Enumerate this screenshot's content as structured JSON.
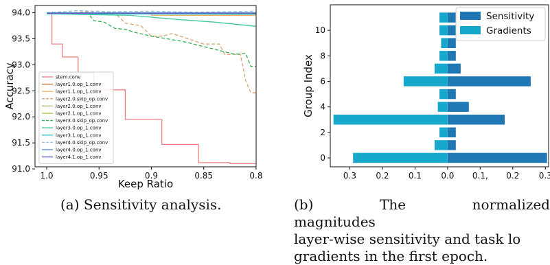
{
  "captions": {
    "a": "(a) Sensitivity analysis.",
    "b1": "(b) The normalized magnitudes",
    "b2": "layer-wise sensitivity and task lo",
    "b3": "gradients in the first epoch."
  },
  "chart_data": [
    {
      "type": "line",
      "xlabel": "Keep Ratio",
      "ylabel": "Accuracy",
      "xlim": [
        1.0,
        0.8
      ],
      "ylim": [
        91.0,
        94.1
      ],
      "x_reversed": true,
      "xticks": [
        1.0,
        0.95,
        0.9,
        0.85,
        0.8
      ],
      "xtick_labels": [
        "1.0",
        "0.95",
        "0.9",
        "0.85",
        "0.8"
      ],
      "yticks": [
        91.0,
        91.5,
        92.0,
        92.5,
        93.0,
        93.5,
        94.0
      ],
      "ytick_labels": [
        "91.0",
        "91.5",
        "92.0",
        "92.5",
        "93.0",
        "93.5",
        "94.0"
      ],
      "grid": false,
      "legend_position": "bottom-left",
      "series": [
        {
          "name": "stem.conv",
          "color": "#f08080",
          "dash": false,
          "points": [
            [
              1.0,
              93.98
            ],
            [
              0.995,
              93.98
            ],
            [
              0.995,
              93.4
            ],
            [
              0.985,
              93.4
            ],
            [
              0.985,
              93.15
            ],
            [
              0.97,
              93.15
            ],
            [
              0.97,
              92.85
            ],
            [
              0.955,
              92.85
            ],
            [
              0.955,
              92.52
            ],
            [
              0.925,
              92.52
            ],
            [
              0.925,
              91.95
            ],
            [
              0.89,
              91.95
            ],
            [
              0.89,
              91.47
            ],
            [
              0.855,
              91.47
            ],
            [
              0.855,
              91.12
            ],
            [
              0.825,
              91.12
            ],
            [
              0.825,
              91.1
            ],
            [
              0.8,
              91.1
            ]
          ]
        },
        {
          "name": "layer1.0.op_1.conv",
          "color": "#c8743c",
          "dash": false,
          "points": [
            [
              1.0,
              93.98
            ],
            [
              0.8,
              93.98
            ]
          ]
        },
        {
          "name": "layer1.1.op_1.conv",
          "color": "#f0b070",
          "dash": false,
          "points": [
            [
              1.0,
              93.99
            ],
            [
              0.9,
              93.99
            ],
            [
              0.9,
              93.95
            ],
            [
              0.8,
              93.95
            ]
          ]
        },
        {
          "name": "layer2.0.skip_op.conv",
          "color": "#d4a373",
          "dash": true,
          "points": [
            [
              1.0,
              93.98
            ],
            [
              0.95,
              94.03
            ],
            [
              0.935,
              94.0
            ],
            [
              0.925,
              93.8
            ],
            [
              0.91,
              93.75
            ],
            [
              0.9,
              93.55
            ],
            [
              0.89,
              93.55
            ],
            [
              0.88,
              93.6
            ],
            [
              0.865,
              93.5
            ],
            [
              0.85,
              93.4
            ],
            [
              0.835,
              93.4
            ],
            [
              0.83,
              93.2
            ],
            [
              0.815,
              93.2
            ],
            [
              0.81,
              92.7
            ],
            [
              0.805,
              92.46
            ],
            [
              0.8,
              92.46
            ]
          ]
        },
        {
          "name": "layer2.0.op_1.conv",
          "color": "#b8b870",
          "dash": false,
          "points": [
            [
              1.0,
              93.99
            ],
            [
              0.8,
              93.98
            ]
          ]
        },
        {
          "name": "layer2.1.op_1.conv",
          "color": "#a8c84c",
          "dash": false,
          "points": [
            [
              1.0,
              93.99
            ],
            [
              0.9,
              93.98
            ],
            [
              0.8,
              93.97
            ]
          ]
        },
        {
          "name": "layer3.0.skip_op.conv",
          "color": "#2eb050",
          "dash": true,
          "points": [
            [
              1.0,
              93.99
            ],
            [
              0.96,
              93.98
            ],
            [
              0.955,
              93.85
            ],
            [
              0.945,
              93.82
            ],
            [
              0.935,
              93.7
            ],
            [
              0.925,
              93.68
            ],
            [
              0.915,
              93.62
            ],
            [
              0.9,
              93.55
            ],
            [
              0.885,
              93.5
            ],
            [
              0.87,
              93.45
            ],
            [
              0.86,
              93.4
            ],
            [
              0.85,
              93.35
            ],
            [
              0.84,
              93.3
            ],
            [
              0.83,
              93.25
            ],
            [
              0.82,
              93.2
            ],
            [
              0.81,
              93.22
            ],
            [
              0.805,
              92.97
            ],
            [
              0.8,
              92.97
            ]
          ]
        },
        {
          "name": "layer3.0.op_1.conv",
          "color": "#40c8a0",
          "dash": false,
          "points": [
            [
              1.0,
              93.98
            ],
            [
              0.92,
              93.95
            ],
            [
              0.88,
              93.88
            ],
            [
              0.84,
              93.82
            ],
            [
              0.8,
              93.74
            ]
          ]
        },
        {
          "name": "layer3.1.op_1.conv",
          "color": "#30c0c8",
          "dash": false,
          "points": [
            [
              1.0,
              93.98
            ],
            [
              0.8,
              93.97
            ]
          ]
        },
        {
          "name": "layer4.0.skip_op.conv",
          "color": "#8ec0e8",
          "dash": true,
          "points": [
            [
              1.0,
              94.0
            ],
            [
              0.97,
              94.04
            ],
            [
              0.94,
              94.02
            ],
            [
              0.9,
              94.03
            ],
            [
              0.86,
              94.01
            ],
            [
              0.8,
              94.03
            ]
          ]
        },
        {
          "name": "layer4.0.op_1.conv",
          "color": "#5a90d8",
          "dash": false,
          "points": [
            [
              1.0,
              94.0
            ],
            [
              0.8,
              94.0
            ]
          ]
        },
        {
          "name": "layer4.1.op_1.conv",
          "color": "#6060c0",
          "dash": false,
          "points": [
            [
              1.0,
              93.99
            ],
            [
              0.8,
              93.99
            ]
          ]
        }
      ]
    },
    {
      "type": "bar",
      "orientation": "horizontal",
      "ylabel": "Group Index",
      "xlim": [
        -0.36,
        0.31
      ],
      "ylim": [
        -0.7,
        12.0
      ],
      "xticks": [
        -0.3,
        -0.2,
        -0.1,
        0.0,
        0.1,
        0.2,
        0.3
      ],
      "xtick_labels": [
        "0.3",
        "0.2",
        "0.1",
        "0.0",
        "0.1,",
        "0.2",
        "0.3"
      ],
      "yticks": [
        0,
        2,
        4,
        6,
        8,
        10
      ],
      "ytick_labels": [
        "0",
        "2",
        "4",
        "6",
        "8",
        "10"
      ],
      "legend_position": "top-right",
      "categories": [
        0,
        1,
        2,
        3,
        4,
        5,
        6,
        7,
        8,
        9,
        10,
        11
      ],
      "series": [
        {
          "name": "Sensitivity",
          "color": "#1f77b4",
          "values": [
            0.305,
            0.025,
            0.025,
            0.175,
            0.065,
            0.025,
            0.255,
            0.04,
            0.025,
            0.025,
            0.025,
            0.025
          ]
        },
        {
          "name": "Gradients",
          "color": "#17a8cc",
          "values": [
            -0.29,
            -0.04,
            -0.025,
            -0.35,
            -0.03,
            -0.025,
            -0.135,
            -0.04,
            -0.025,
            -0.02,
            -0.025,
            -0.025
          ]
        }
      ]
    }
  ]
}
